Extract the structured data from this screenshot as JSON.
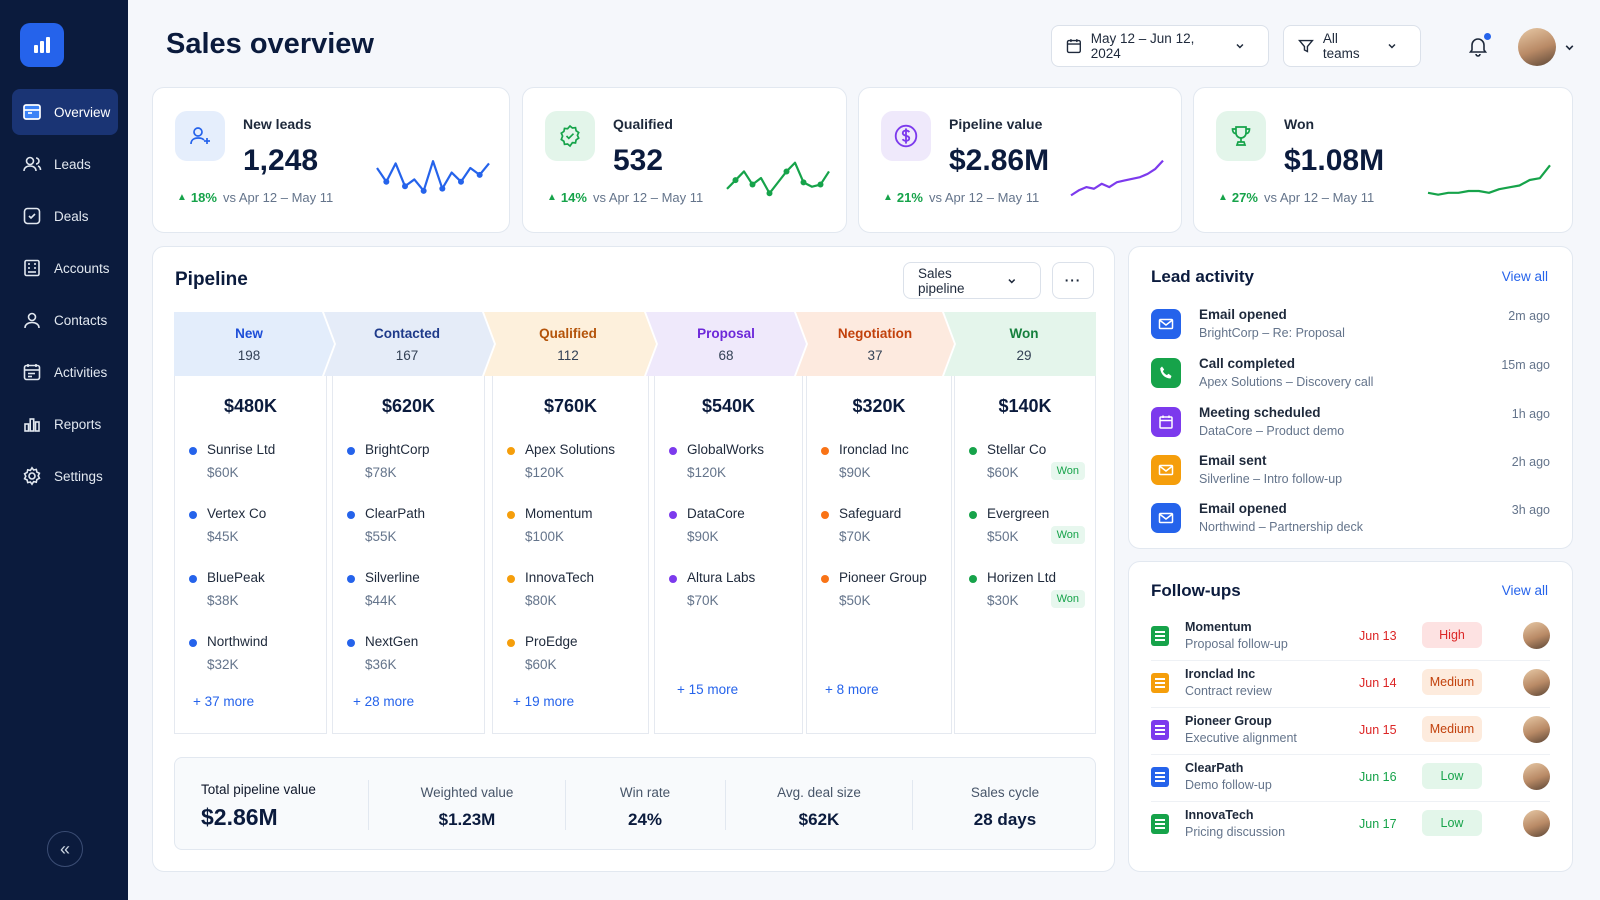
{
  "app": {
    "title": "Sales overview"
  },
  "sidebar": {
    "items": [
      {
        "label": "Overview",
        "icon": "overview-icon",
        "active": true
      },
      {
        "label": "Leads",
        "icon": "leads-icon"
      },
      {
        "label": "Deals",
        "icon": "deals-icon"
      },
      {
        "label": "Accounts",
        "icon": "accounts-icon"
      },
      {
        "label": "Contacts",
        "icon": "contacts-icon"
      },
      {
        "label": "Activities",
        "icon": "activities-icon"
      },
      {
        "label": "Reports",
        "icon": "reports-icon"
      },
      {
        "label": "Settings",
        "icon": "settings-icon"
      }
    ],
    "collapse_icon": "«"
  },
  "header": {
    "date_range": "May 12 – Jun 12, 2024",
    "team_filter": "All teams"
  },
  "kpis": [
    {
      "label": "New leads",
      "value": "1,248",
      "change": "18%",
      "compare": "vs Apr 12 – May 11",
      "color": "#2563eb",
      "spark": [
        52,
        58,
        50,
        60,
        57,
        62,
        49,
        61,
        54,
        58,
        52,
        55,
        50
      ]
    },
    {
      "label": "Qualified",
      "value": "532",
      "change": "14%",
      "compare": "vs Apr 12 – May 11",
      "color": "#16a34a",
      "spark": [
        58,
        54,
        50,
        56,
        53,
        60,
        55,
        50,
        46,
        55,
        57,
        56,
        50
      ]
    },
    {
      "label": "Pipeline value",
      "value": "$2.86M",
      "change": "21%",
      "compare": "vs Apr 12 – May 11",
      "color": "#7c3aed",
      "spark": [
        59,
        56,
        54,
        55,
        52,
        54,
        51,
        50,
        49,
        48,
        46,
        43,
        38
      ]
    },
    {
      "label": "Won",
      "value": "$1.08M",
      "change": "27%",
      "compare": "vs Apr 12 – May 11",
      "color": "#16a34a",
      "spark": [
        57,
        58,
        57,
        57,
        56,
        56,
        57,
        55,
        54,
        53,
        50,
        49,
        42
      ]
    }
  ],
  "pipeline": {
    "title": "Pipeline",
    "selector": "Sales pipeline",
    "more_icon": "···",
    "stages": [
      {
        "name": "New",
        "count": "198",
        "total": "$480K",
        "color": "#1d4ed8",
        "bg": "#e3edfb",
        "dot": "#2563eb",
        "deals": [
          {
            "name": "Sunrise Ltd",
            "amount": "$60K"
          },
          {
            "name": "Vertex Co",
            "amount": "$45K"
          },
          {
            "name": "BluePeak",
            "amount": "$38K"
          },
          {
            "name": "Northwind",
            "amount": "$32K"
          }
        ],
        "more": "+ 37 more"
      },
      {
        "name": "Contacted",
        "count": "167",
        "total": "$620K",
        "color": "#1e3a8a",
        "bg": "#e5ecf8",
        "dot": "#2563eb",
        "deals": [
          {
            "name": "BrightCorp",
            "amount": "$78K"
          },
          {
            "name": "ClearPath",
            "amount": "$55K"
          },
          {
            "name": "Silverline",
            "amount": "$44K"
          },
          {
            "name": "NextGen",
            "amount": "$36K"
          }
        ],
        "more": "+ 28 more"
      },
      {
        "name": "Qualified",
        "count": "112",
        "total": "$760K",
        "color": "#b45309",
        "bg": "#fdf0dc",
        "dot": "#f59e0b",
        "deals": [
          {
            "name": "Apex Solutions",
            "amount": "$120K"
          },
          {
            "name": "Momentum",
            "amount": "$100K"
          },
          {
            "name": "InnovaTech",
            "amount": "$80K"
          },
          {
            "name": "ProEdge",
            "amount": "$60K"
          }
        ],
        "more": "+ 19 more"
      },
      {
        "name": "Proposal",
        "count": "68",
        "total": "$540K",
        "color": "#6d28d9",
        "bg": "#efe9fb",
        "dot": "#7c3aed",
        "deals": [
          {
            "name": "GlobalWorks",
            "amount": "$120K"
          },
          {
            "name": "DataCore",
            "amount": "$90K"
          },
          {
            "name": "Altura Labs",
            "amount": "$70K"
          }
        ],
        "more": "+ 15 more"
      },
      {
        "name": "Negotiation",
        "count": "37",
        "total": "$320K",
        "color": "#c2410c",
        "bg": "#fdeadf",
        "dot": "#f97316",
        "deals": [
          {
            "name": "Ironclad Inc",
            "amount": "$90K"
          },
          {
            "name": "Safeguard",
            "amount": "$70K"
          },
          {
            "name": "Pioneer Group",
            "amount": "$50K"
          }
        ],
        "more": "+ 8 more"
      },
      {
        "name": "Won",
        "count": "29",
        "total": "$140K",
        "color": "#15803d",
        "bg": "#e4f5eb",
        "dot": "#16a34a",
        "deals": [
          {
            "name": "Stellar Co",
            "amount": "$60K",
            "badge": "Won"
          },
          {
            "name": "Evergreen",
            "amount": "$50K",
            "badge": "Won"
          },
          {
            "name": "Horizen Ltd",
            "amount": "$30K",
            "badge": "Won"
          }
        ],
        "more": ""
      }
    ],
    "summary": [
      {
        "label": "Total pipeline value",
        "value": "$2.86M"
      },
      {
        "label": "Weighted value",
        "value": "$1.23M"
      },
      {
        "label": "Win rate",
        "value": "24%"
      },
      {
        "label": "Avg. deal size",
        "value": "$62K"
      },
      {
        "label": "Sales cycle",
        "value": "28 days"
      }
    ]
  },
  "lead_activity": {
    "title": "Lead activity",
    "view_all": "View all",
    "items": [
      {
        "title": "Email opened",
        "sub": "BrightCorp – Re: Proposal",
        "time": "2m ago",
        "icon": "mail-icon",
        "color": "#2563eb"
      },
      {
        "title": "Call completed",
        "sub": "Apex Solutions – Discovery call",
        "time": "15m ago",
        "icon": "phone-icon",
        "color": "#16a34a"
      },
      {
        "title": "Meeting scheduled",
        "sub": "DataCore – Product demo",
        "time": "1h ago",
        "icon": "calendar-icon",
        "color": "#7c3aed"
      },
      {
        "title": "Email sent",
        "sub": "Silverline – Intro follow-up",
        "time": "2h ago",
        "icon": "mail-icon",
        "color": "#f59e0b"
      },
      {
        "title": "Email opened",
        "sub": "Northwind – Partnership deck",
        "time": "3h ago",
        "icon": "mail-icon",
        "color": "#2563eb"
      }
    ]
  },
  "followups": {
    "title": "Follow-ups",
    "view_all": "View all",
    "items": [
      {
        "name": "Momentum",
        "sub": "Proposal follow-up",
        "date": "Jun 13",
        "priority": "High",
        "icon_color": "#16a34a",
        "pri_bg": "#fde2e2",
        "pri_color": "#dc2626"
      },
      {
        "name": "Ironclad Inc",
        "sub": "Contract review",
        "date": "Jun 14",
        "priority": "Medium",
        "icon_color": "#f59e0b",
        "pri_bg": "#fdebdd",
        "pri_color": "#c2410c"
      },
      {
        "name": "Pioneer Group",
        "sub": "Executive alignment",
        "date": "Jun 15",
        "priority": "Medium",
        "icon_color": "#7c3aed",
        "pri_bg": "#fdebdd",
        "pri_color": "#c2410c"
      },
      {
        "name": "ClearPath",
        "sub": "Demo follow-up",
        "date": "Jun 16",
        "priority": "Low",
        "icon_color": "#2563eb",
        "pri_bg": "#e3f6ea",
        "pri_color": "#16a34a"
      },
      {
        "name": "InnovaTech",
        "sub": "Pricing discussion",
        "date": "Jun 17",
        "priority": "Low",
        "icon_color": "#16a34a",
        "pri_bg": "#e3f6ea",
        "pri_color": "#16a34a"
      }
    ]
  }
}
